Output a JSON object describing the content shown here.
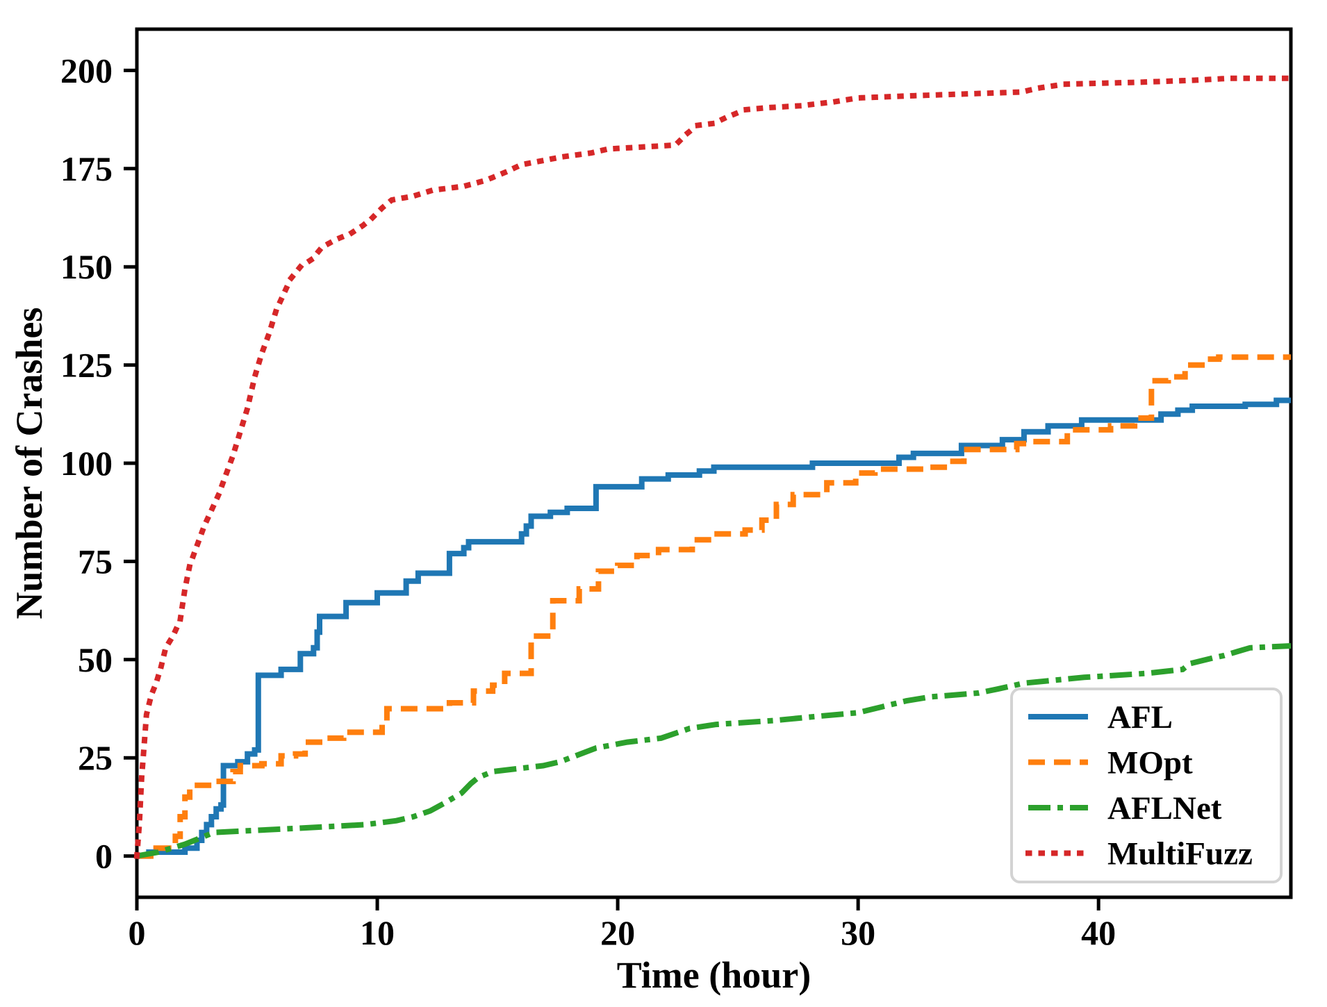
{
  "figure": {
    "background": "#ffffff",
    "axis_color": "#000000",
    "legend_border_color": "#d3d3d3"
  },
  "chart_data": {
    "type": "line",
    "title": "",
    "xlabel": "Time (hour)",
    "ylabel": "Number of Crashes",
    "xlim": [
      0,
      48
    ],
    "ylim": [
      -10.5,
      210.5
    ],
    "x_ticks": [
      "0",
      "10",
      "20",
      "30",
      "40"
    ],
    "x_tick_values": [
      0,
      10,
      20,
      30,
      40
    ],
    "y_ticks": [
      "0",
      "25",
      "50",
      "75",
      "100",
      "125",
      "150",
      "175",
      "200"
    ],
    "y_tick_values": [
      0,
      25,
      50,
      75,
      100,
      125,
      150,
      175,
      200
    ],
    "grid": false,
    "legend_position": "lower right",
    "series": [
      {
        "name": "AFL",
        "color": "#1f77b4",
        "style": "solid",
        "interp": "step",
        "points": [
          [
            0,
            0
          ],
          [
            0.5,
            1
          ],
          [
            2,
            2
          ],
          [
            2.5,
            4
          ],
          [
            2.7,
            6
          ],
          [
            2.9,
            8
          ],
          [
            3.1,
            10
          ],
          [
            3.3,
            12
          ],
          [
            3.5,
            13
          ],
          [
            3.6,
            23
          ],
          [
            4.2,
            24
          ],
          [
            4.6,
            26
          ],
          [
            4.9,
            27
          ],
          [
            5.05,
            46
          ],
          [
            6,
            47.5
          ],
          [
            6.8,
            51.5
          ],
          [
            7.35,
            53
          ],
          [
            7.5,
            57
          ],
          [
            7.6,
            61
          ],
          [
            8.7,
            64.5
          ],
          [
            10,
            67
          ],
          [
            11.2,
            70
          ],
          [
            11.7,
            72
          ],
          [
            13,
            77
          ],
          [
            13.6,
            78.5
          ],
          [
            13.8,
            80
          ],
          [
            16,
            82
          ],
          [
            16.2,
            84
          ],
          [
            16.4,
            86.5
          ],
          [
            17.2,
            87.5
          ],
          [
            17.9,
            88.5
          ],
          [
            19.1,
            94
          ],
          [
            21,
            96
          ],
          [
            22.1,
            97
          ],
          [
            23.4,
            98
          ],
          [
            24,
            99
          ],
          [
            28.1,
            100
          ],
          [
            31.7,
            101.5
          ],
          [
            32.3,
            102.5
          ],
          [
            34.3,
            104.5
          ],
          [
            36,
            106
          ],
          [
            36.9,
            108
          ],
          [
            37.9,
            109.5
          ],
          [
            39.3,
            111
          ],
          [
            42.6,
            112.5
          ],
          [
            43.3,
            113.5
          ],
          [
            43.9,
            114.5
          ],
          [
            46.1,
            115
          ],
          [
            47.4,
            116
          ],
          [
            48,
            116
          ]
        ]
      },
      {
        "name": "MOpt",
        "color": "#ff7f0e",
        "style": "dashed",
        "interp": "step",
        "points": [
          [
            0,
            0
          ],
          [
            0.8,
            2
          ],
          [
            1.6,
            5
          ],
          [
            1.8,
            10
          ],
          [
            2,
            15
          ],
          [
            2.2,
            18
          ],
          [
            3.3,
            19
          ],
          [
            4,
            21.5
          ],
          [
            4.3,
            23
          ],
          [
            5.2,
            23.5
          ],
          [
            6,
            25.5
          ],
          [
            6.6,
            26
          ],
          [
            7,
            29
          ],
          [
            7.8,
            30
          ],
          [
            8.6,
            31.5
          ],
          [
            10.2,
            33.5
          ],
          [
            10.4,
            37.5
          ],
          [
            13,
            39
          ],
          [
            14,
            42
          ],
          [
            14.8,
            43.5
          ],
          [
            15.3,
            46.5
          ],
          [
            16.4,
            56
          ],
          [
            17.3,
            65
          ],
          [
            18.4,
            68
          ],
          [
            19.2,
            72.5
          ],
          [
            20,
            74
          ],
          [
            20.8,
            76.5
          ],
          [
            21.7,
            78
          ],
          [
            23.1,
            80.5
          ],
          [
            24,
            82
          ],
          [
            25.3,
            83
          ],
          [
            26,
            85.5
          ],
          [
            26.6,
            89.5
          ],
          [
            27.3,
            92
          ],
          [
            28.7,
            95
          ],
          [
            29.9,
            97.5
          ],
          [
            30.7,
            98.5
          ],
          [
            33,
            99
          ],
          [
            33.7,
            100.5
          ],
          [
            34.4,
            103.5
          ],
          [
            36.6,
            105
          ],
          [
            37,
            105.5
          ],
          [
            38.7,
            108.5
          ],
          [
            40.5,
            109.5
          ],
          [
            41.5,
            111.5
          ],
          [
            42.2,
            121
          ],
          [
            42.9,
            122
          ],
          [
            43.6,
            125
          ],
          [
            44.3,
            126.5
          ],
          [
            45,
            127
          ],
          [
            48,
            127
          ]
        ]
      },
      {
        "name": "AFLNet",
        "color": "#2ca02c",
        "style": "dashdot",
        "interp": "linear",
        "points": [
          [
            0,
            0
          ],
          [
            0.9,
            1
          ],
          [
            2,
            3
          ],
          [
            2.6,
            4.5
          ],
          [
            3.2,
            6
          ],
          [
            6.5,
            7
          ],
          [
            9.5,
            8
          ],
          [
            10.8,
            9
          ],
          [
            11.5,
            10
          ],
          [
            12.2,
            11.5
          ],
          [
            12.8,
            13.5
          ],
          [
            13.5,
            16
          ],
          [
            13.9,
            18.5
          ],
          [
            14.2,
            20
          ],
          [
            14.8,
            21.5
          ],
          [
            16.9,
            23
          ],
          [
            17.6,
            24
          ],
          [
            19.1,
            27.5
          ],
          [
            20.4,
            29
          ],
          [
            21.8,
            30
          ],
          [
            23,
            32.5
          ],
          [
            24.1,
            33.5
          ],
          [
            26.5,
            34.5
          ],
          [
            28.2,
            35.5
          ],
          [
            30,
            36.5
          ],
          [
            31,
            38
          ],
          [
            32,
            39.5
          ],
          [
            33,
            40.5
          ],
          [
            35,
            41.5
          ],
          [
            35.8,
            42.5
          ],
          [
            36.9,
            44
          ],
          [
            39.4,
            45.5
          ],
          [
            42,
            46.5
          ],
          [
            43.5,
            47.5
          ],
          [
            43.8,
            49
          ],
          [
            44.8,
            50.5
          ],
          [
            45.2,
            51
          ],
          [
            46.3,
            53
          ],
          [
            48,
            53.5
          ]
        ]
      },
      {
        "name": "MultiFuzz",
        "color": "#d62728",
        "style": "dotted",
        "interp": "linear",
        "points": [
          [
            0,
            0
          ],
          [
            0.1,
            8
          ],
          [
            0.2,
            20
          ],
          [
            0.3,
            28
          ],
          [
            0.4,
            36
          ],
          [
            0.6,
            41
          ],
          [
            0.8,
            44
          ],
          [
            1,
            48
          ],
          [
            1.2,
            53
          ],
          [
            1.5,
            56
          ],
          [
            1.8,
            60
          ],
          [
            2,
            68
          ],
          [
            2.2,
            74
          ],
          [
            2.5,
            79
          ],
          [
            2.8,
            84
          ],
          [
            3.1,
            88
          ],
          [
            3.4,
            92
          ],
          [
            3.7,
            97
          ],
          [
            4,
            102
          ],
          [
            4.3,
            108
          ],
          [
            4.6,
            114
          ],
          [
            4.9,
            122
          ],
          [
            5.2,
            128
          ],
          [
            5.5,
            133
          ],
          [
            5.8,
            139
          ],
          [
            6.1,
            143
          ],
          [
            6.4,
            147
          ],
          [
            6.8,
            150
          ],
          [
            7.3,
            152
          ],
          [
            7.7,
            155
          ],
          [
            8.3,
            157
          ],
          [
            8.9,
            158.5
          ],
          [
            9.4,
            160.5
          ],
          [
            9.8,
            162.5
          ],
          [
            10.2,
            165
          ],
          [
            10.6,
            167
          ],
          [
            11.5,
            168
          ],
          [
            12.3,
            169.5
          ],
          [
            13.6,
            170.5
          ],
          [
            14.5,
            172
          ],
          [
            15.3,
            174
          ],
          [
            16,
            176
          ],
          [
            17.7,
            178
          ],
          [
            18.9,
            179
          ],
          [
            19.6,
            180
          ],
          [
            22.4,
            181
          ],
          [
            22.9,
            184
          ],
          [
            23.3,
            186
          ],
          [
            24,
            186.5
          ],
          [
            24.5,
            188
          ],
          [
            25.3,
            190
          ],
          [
            26.2,
            190.5
          ],
          [
            27.6,
            191
          ],
          [
            29,
            192
          ],
          [
            30,
            193
          ],
          [
            32,
            193.5
          ],
          [
            36.8,
            194.5
          ],
          [
            37.5,
            195.5
          ],
          [
            38.6,
            196.5
          ],
          [
            41.7,
            197
          ],
          [
            44,
            197.5
          ],
          [
            45.5,
            198
          ],
          [
            48,
            198
          ]
        ]
      }
    ]
  }
}
